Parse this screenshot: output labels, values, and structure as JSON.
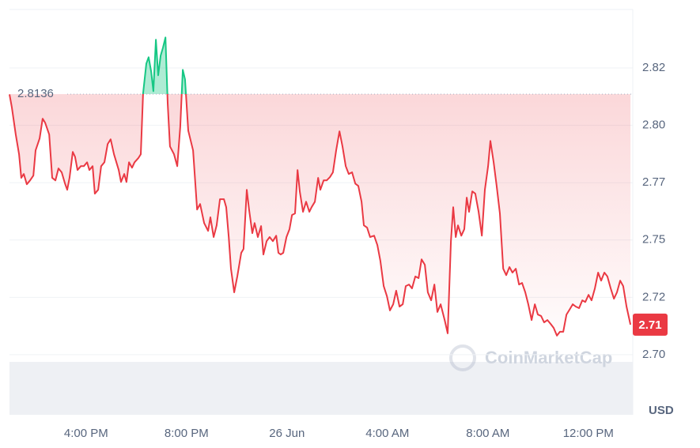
{
  "chart_data": {
    "type": "line",
    "unit_label": "USD",
    "watermark": "CoinMarketCap",
    "baseline": 2.8136,
    "current_price_label": "2.71",
    "color_up": "#16c784",
    "color_down": "#ea3943",
    "grid": true,
    "xlim": [
      12.95,
      37.77
    ],
    "ylim": [
      2.6738,
      2.8505
    ],
    "xticks": [
      {
        "value": 16,
        "label": "4:00 PM"
      },
      {
        "value": 20,
        "label": "8:00 PM"
      },
      {
        "value": 24,
        "label": "26 Jun"
      },
      {
        "value": 28,
        "label": "4:00 AM"
      },
      {
        "value": 32,
        "label": "8:00 AM"
      },
      {
        "value": 36,
        "label": "12:00 PM"
      }
    ],
    "yticks": [
      {
        "value": 2.7,
        "label": "2.70"
      },
      {
        "value": 2.725,
        "label": "2.72"
      },
      2.75,
      {
        "value": 2.775,
        "label": "2.77"
      },
      {
        "value": 2.8,
        "label": "2.80"
      },
      {
        "value": 2.825,
        "label": "2.82"
      }
    ],
    "x": [
      12.95,
      13.04,
      13.2,
      13.33,
      13.42,
      13.52,
      13.64,
      13.77,
      13.9,
      13.99,
      14.15,
      14.27,
      14.37,
      14.53,
      14.65,
      14.78,
      14.9,
      15.03,
      15.16,
      15.25,
      15.34,
      15.47,
      15.56,
      15.66,
      15.79,
      15.91,
      16.04,
      16.13,
      16.26,
      16.35,
      16.48,
      16.6,
      16.73,
      16.86,
      16.98,
      17.11,
      17.3,
      17.39,
      17.52,
      17.61,
      17.71,
      17.83,
      17.93,
      18.08,
      18.18,
      18.27,
      18.4,
      18.49,
      18.59,
      18.68,
      18.78,
      18.87,
      18.97,
      19.06,
      19.16,
      19.25,
      19.34,
      19.5,
      19.63,
      19.75,
      19.85,
      19.94,
      20.07,
      20.26,
      20.42,
      20.54,
      20.7,
      20.86,
      20.95,
      21.08,
      21.2,
      21.33,
      21.49,
      21.58,
      21.68,
      21.77,
      21.9,
      22.02,
      22.18,
      22.27,
      22.4,
      22.49,
      22.62,
      22.71,
      22.84,
      22.97,
      23.06,
      23.19,
      23.31,
      23.44,
      23.57,
      23.66,
      23.75,
      23.85,
      23.98,
      24.1,
      24.2,
      24.32,
      24.42,
      24.51,
      24.64,
      24.76,
      24.89,
      24.98,
      25.11,
      25.24,
      25.33,
      25.46,
      25.58,
      25.71,
      25.83,
      25.96,
      26.09,
      26.21,
      26.34,
      26.46,
      26.59,
      26.72,
      26.84,
      26.97,
      27.06,
      27.19,
      27.31,
      27.47,
      27.6,
      27.72,
      27.85,
      27.98,
      28.1,
      28.23,
      28.35,
      28.48,
      28.61,
      28.73,
      28.86,
      28.98,
      29.11,
      29.24,
      29.36,
      29.49,
      29.61,
      29.74,
      29.87,
      29.99,
      30.12,
      30.28,
      30.4,
      30.53,
      30.62,
      30.72,
      30.81,
      30.94,
      31.06,
      31.16,
      31.25,
      31.38,
      31.5,
      31.63,
      31.76,
      31.88,
      32.01,
      32.1,
      32.23,
      32.35,
      32.48,
      32.61,
      32.73,
      32.86,
      32.98,
      33.11,
      33.24,
      33.36,
      33.49,
      33.61,
      33.74,
      33.87,
      33.99,
      34.12,
      34.24,
      34.37,
      34.5,
      34.62,
      34.75,
      34.87,
      35.0,
      35.13,
      35.25,
      35.38,
      35.5,
      35.63,
      35.76,
      35.88,
      36.01,
      36.13,
      36.26,
      36.39,
      36.51,
      36.64,
      36.76,
      36.89,
      37.02,
      37.14,
      37.27,
      37.39,
      37.52,
      37.68
    ],
    "values": [
      2.8135,
      2.808,
      2.796,
      2.7874,
      2.7771,
      2.7788,
      2.7743,
      2.776,
      2.7781,
      2.7891,
      2.7943,
      2.8029,
      2.8011,
      2.796,
      2.7771,
      2.776,
      2.7812,
      2.7795,
      2.7746,
      2.7719,
      2.7771,
      2.7884,
      2.7863,
      2.7805,
      2.7822,
      2.7822,
      2.7839,
      2.7805,
      2.7822,
      2.7702,
      2.7719,
      2.7822,
      2.7839,
      2.7918,
      2.7939,
      2.7874,
      2.7805,
      2.7753,
      2.7788,
      2.7753,
      2.7839,
      2.7815,
      2.7839,
      2.7857,
      2.7874,
      2.8139,
      2.8269,
      2.8297,
      2.8235,
      2.8149,
      2.8373,
      2.8218,
      2.8304,
      2.8338,
      2.8383,
      2.8097,
      2.7908,
      2.7874,
      2.7822,
      2.7994,
      2.8242,
      2.8201,
      2.7977,
      2.7891,
      2.7633,
      2.7657,
      2.7574,
      2.754,
      2.7599,
      2.7513,
      2.7564,
      2.7678,
      2.7678,
      2.7643,
      2.7513,
      2.7375,
      2.7272,
      2.7341,
      2.7444,
      2.7461,
      2.7719,
      2.7633,
      2.753,
      2.7574,
      2.7513,
      2.7561,
      2.7437,
      2.7495,
      2.7513,
      2.7495,
      2.7519,
      2.7444,
      2.7437,
      2.7444,
      2.7513,
      2.7547,
      2.7609,
      2.7616,
      2.7805,
      2.7712,
      2.7623,
      2.7667,
      2.7623,
      2.7643,
      2.7667,
      2.7771,
      2.7719,
      2.776,
      2.776,
      2.7774,
      2.7795,
      2.7891,
      2.7974,
      2.7908,
      2.7822,
      2.7788,
      2.7795,
      2.7746,
      2.7736,
      2.7667,
      2.7564,
      2.7554,
      2.7513,
      2.7519,
      2.7478,
      2.7409,
      2.7299,
      2.7255,
      2.7193,
      2.722,
      2.7279,
      2.721,
      2.722,
      2.7299,
      2.7306,
      2.7289,
      2.7341,
      2.7334,
      2.7416,
      2.7392,
      2.7272,
      2.7237,
      2.7306,
      2.7186,
      2.722,
      2.7151,
      2.7093,
      2.7495,
      2.7643,
      2.7513,
      2.7564,
      2.7519,
      2.7547,
      2.7685,
      2.7623,
      2.7712,
      2.7702,
      2.7623,
      2.7519,
      2.7719,
      2.7822,
      2.7932,
      2.7839,
      2.7736,
      2.7616,
      2.7375,
      2.7347,
      2.7382,
      2.7358,
      2.7375,
      2.7306,
      2.7313,
      2.7272,
      2.722,
      2.7151,
      2.722,
      2.7175,
      2.7169,
      2.7141,
      2.7151,
      2.7134,
      2.7117,
      2.7083,
      2.71,
      2.71,
      2.7175,
      2.7196,
      2.722,
      2.721,
      2.7203,
      2.7237,
      2.723,
      2.7261,
      2.7237,
      2.7289,
      2.7358,
      2.7323,
      2.7358,
      2.7341,
      2.7289,
      2.7244,
      2.7272,
      2.7323,
      2.7299,
      2.721,
      2.7131
    ]
  }
}
